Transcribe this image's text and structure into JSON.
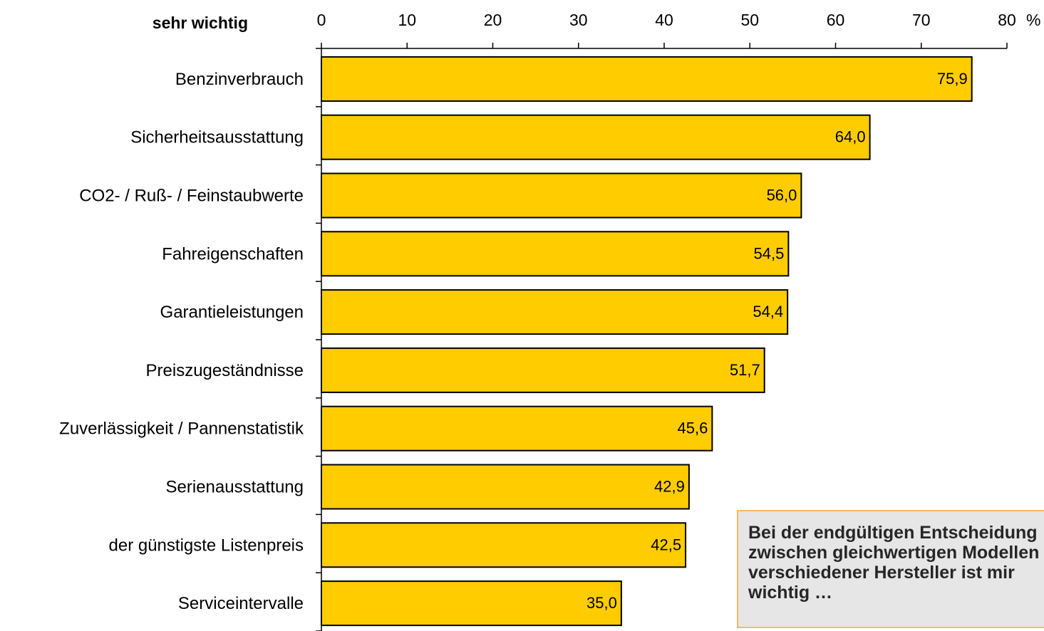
{
  "chart_data": {
    "type": "bar",
    "orientation": "horizontal",
    "corner_label": "sehr wichtig",
    "unit": "%",
    "xlim": [
      0,
      80
    ],
    "x_ticks": [
      0,
      10,
      20,
      30,
      40,
      50,
      60,
      70,
      80
    ],
    "x_tick_labels": [
      "0",
      "10",
      "20",
      "30",
      "40",
      "50",
      "60",
      "70",
      "80"
    ],
    "categories": [
      "Benzinverbrauch",
      "Sicherheitsausstattung",
      "CO2- / Ruß- / Feinstaubwerte",
      "Fahreigenschaften",
      "Garantieleistungen",
      "Preiszugeständnisse",
      "Zuverlässigkeit / Pannenstatistik",
      "Serienausstattung",
      "der günstigste Listenpreis",
      "Serviceintervalle"
    ],
    "values": [
      75.9,
      64.0,
      56.0,
      54.5,
      54.4,
      51.7,
      45.6,
      42.9,
      42.5,
      35.0
    ],
    "value_labels": [
      "75,9",
      "64,0",
      "56,0",
      "54,5",
      "54,4",
      "51,7",
      "45,6",
      "42,9",
      "42,5",
      "35,0"
    ],
    "grid": false,
    "bar_color": "#FFCC00",
    "bar_edge_color": "#000000"
  },
  "note": {
    "lines": [
      "Bei der endgültigen Entscheidung",
      "zwischen gleichwertigen Modellen",
      "verschiedener Hersteller ist mir",
      "wichtig …"
    ],
    "background": "#E6E6E6",
    "border_color": "#F7B86A"
  }
}
